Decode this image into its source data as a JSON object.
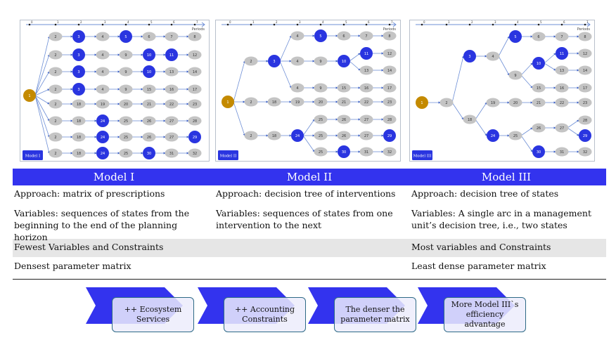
{
  "colors": {
    "accent": "#3333ee",
    "node": "#c4c4c4",
    "highlight": "#2a35e0",
    "root": "#c48a00",
    "edge": "#6e8fd6"
  },
  "highlighted": [
    "3",
    "5",
    "10",
    "11",
    "24",
    "29",
    "30"
  ],
  "axis": {
    "ticks": [
      "0",
      "1",
      "2",
      "3",
      "4",
      "5",
      "6",
      "7"
    ],
    "label": "Periods"
  },
  "models": [
    {
      "badge": "Model I",
      "root": "1",
      "rows": [
        [
          "2",
          "3",
          "4",
          "5",
          "6",
          "7",
          "8"
        ],
        [
          "2",
          "3",
          "4",
          "9",
          "10",
          "11",
          "12"
        ],
        [
          "2",
          "3",
          "4",
          "9",
          "10",
          "13",
          "14"
        ],
        [
          "2",
          "3",
          "4",
          "9",
          "15",
          "16",
          "17"
        ],
        [
          "2",
          "18",
          "19",
          "20",
          "21",
          "22",
          "23"
        ],
        [
          "2",
          "18",
          "24",
          "25",
          "26",
          "27",
          "28"
        ],
        [
          "2",
          "18",
          "24",
          "25",
          "26",
          "27",
          "29"
        ],
        [
          "2",
          "18",
          "24",
          "25",
          "30",
          "31",
          "32"
        ]
      ]
    },
    {
      "badge": "Model II",
      "nodes": [
        [
          "1",
          -1
        ],
        [
          "2",
          0
        ],
        [
          "3",
          1
        ],
        [
          "4",
          2
        ],
        [
          "5",
          3
        ],
        [
          "6",
          4
        ],
        [
          "7",
          5
        ],
        [
          "8",
          6
        ],
        [
          "4",
          2
        ],
        [
          "9",
          8
        ],
        [
          "10",
          9
        ],
        [
          "11",
          10
        ],
        [
          "12",
          11
        ],
        [
          "13",
          10
        ],
        [
          "14",
          13
        ],
        [
          "4",
          2
        ],
        [
          "9",
          15
        ],
        [
          "15",
          16
        ],
        [
          "16",
          17
        ],
        [
          "17",
          18
        ],
        [
          "2",
          0
        ],
        [
          "18",
          20
        ],
        [
          "19",
          21
        ],
        [
          "20",
          22
        ],
        [
          "21",
          23
        ],
        [
          "22",
          24
        ],
        [
          "23",
          25
        ],
        [
          "2",
          0
        ],
        [
          "18",
          27
        ],
        [
          "24",
          28
        ],
        [
          "25",
          29
        ],
        [
          "26",
          30
        ],
        [
          "27",
          31
        ],
        [
          "28",
          32
        ],
        [
          "25",
          29
        ],
        [
          "26",
          34
        ],
        [
          "27",
          35
        ],
        [
          "29",
          36
        ],
        [
          "25",
          29
        ],
        [
          "30",
          38
        ],
        [
          "31",
          39
        ],
        [
          "32",
          40
        ]
      ]
    },
    {
      "badge": "Model III",
      "nodes": [
        [
          "1",
          -1
        ],
        [
          "2",
          0
        ],
        [
          "3",
          1
        ],
        [
          "4",
          2
        ],
        [
          "5",
          3
        ],
        [
          "6",
          4
        ],
        [
          "7",
          5
        ],
        [
          "8",
          6
        ],
        [
          "9",
          3
        ],
        [
          "10",
          8
        ],
        [
          "11",
          9
        ],
        [
          "12",
          10
        ],
        [
          "13",
          9
        ],
        [
          "14",
          12
        ],
        [
          "15",
          8
        ],
        [
          "16",
          14
        ],
        [
          "17",
          15
        ],
        [
          "18",
          1
        ],
        [
          "19",
          17
        ],
        [
          "20",
          18
        ],
        [
          "21",
          19
        ],
        [
          "22",
          20
        ],
        [
          "23",
          21
        ],
        [
          "24",
          17
        ],
        [
          "25",
          23
        ],
        [
          "26",
          24
        ],
        [
          "27",
          25
        ],
        [
          "28",
          26
        ],
        [
          "29",
          26
        ],
        [
          "30",
          24
        ],
        [
          "31",
          29
        ],
        [
          "32",
          30
        ]
      ]
    }
  ],
  "table": {
    "headers": [
      "Model I",
      "Model II",
      "Model III"
    ],
    "approach": [
      "Approach: matrix of prescriptions",
      "Approach: decision tree of interventions",
      "Approach: decision tree of states"
    ],
    "variables": [
      "Variables: sequences of states from the beginning to the end of the planning horizon",
      "Variables: sequences of states from one intervention to the next",
      "Variables: A single arc in a management unit’s decision tree, i.e., two states"
    ],
    "size": [
      "Fewest Variables and Constraints",
      "",
      "Most variables and Constraints"
    ],
    "density": [
      "Densest parameter matrix",
      "",
      "Least  dense parameter matrix"
    ]
  },
  "flow": [
    "++ Ecosystem Services",
    "++ Accounting Constraints",
    "The denser the parameter matrix",
    "More Model III`s efficiency advantage"
  ]
}
